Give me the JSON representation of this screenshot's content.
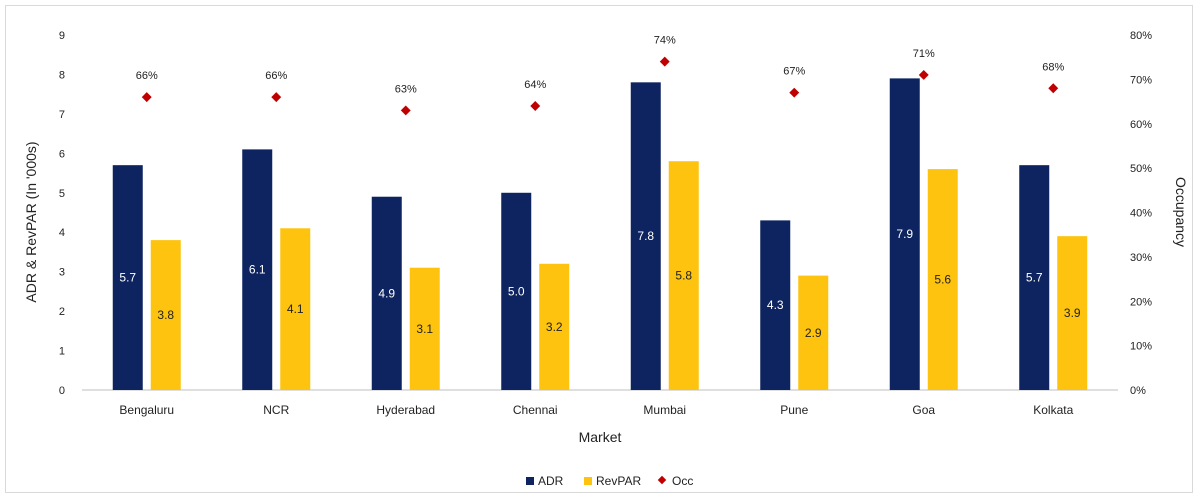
{
  "chart_data": {
    "type": "bar",
    "title": "",
    "xlabel": "Market",
    "ylabel": "ADR & RevPAR (In '000s)",
    "y2label": "Occupancy",
    "categories": [
      "Bengaluru",
      "NCR",
      "Hyderabad",
      "Chennai",
      "Mumbai",
      "Pune",
      "Goa",
      "Kolkata"
    ],
    "series": [
      {
        "name": "ADR",
        "type": "bar",
        "axis": "left",
        "color": "#0d2460",
        "values": [
          5.7,
          6.1,
          4.9,
          5.0,
          7.8,
          4.3,
          7.9,
          5.7
        ],
        "labels": [
          "5.7",
          "6.1",
          "4.9",
          "5.0",
          "7.8",
          "4.3",
          "7.9",
          "5.7"
        ]
      },
      {
        "name": "RevPAR",
        "type": "bar",
        "axis": "left",
        "color": "#fdc30f",
        "values": [
          3.8,
          4.1,
          3.1,
          3.2,
          5.8,
          2.9,
          5.6,
          3.9
        ],
        "labels": [
          "3.8",
          "4.1",
          "3.1",
          "3.2",
          "5.8",
          "2.9",
          "5.6",
          "3.9"
        ]
      },
      {
        "name": "Occ",
        "type": "scatter",
        "axis": "right",
        "color": "#c00000",
        "values": [
          66,
          66,
          63,
          64,
          74,
          67,
          71,
          68
        ],
        "labels": [
          "66%",
          "66%",
          "63%",
          "64%",
          "74%",
          "67%",
          "71%",
          "68%"
        ]
      }
    ],
    "ylim": [
      0,
      9
    ],
    "y_ticks": [
      "0",
      "1",
      "2",
      "3",
      "4",
      "5",
      "6",
      "7",
      "8",
      "9"
    ],
    "y2lim": [
      0,
      80
    ],
    "y2_ticks": [
      "0%",
      "10%",
      "20%",
      "30%",
      "40%",
      "50%",
      "60%",
      "70%",
      "80%"
    ],
    "legend": {
      "position": "bottom",
      "entries": [
        "ADR",
        "RevPAR",
        "Occ"
      ]
    },
    "grid": false
  }
}
